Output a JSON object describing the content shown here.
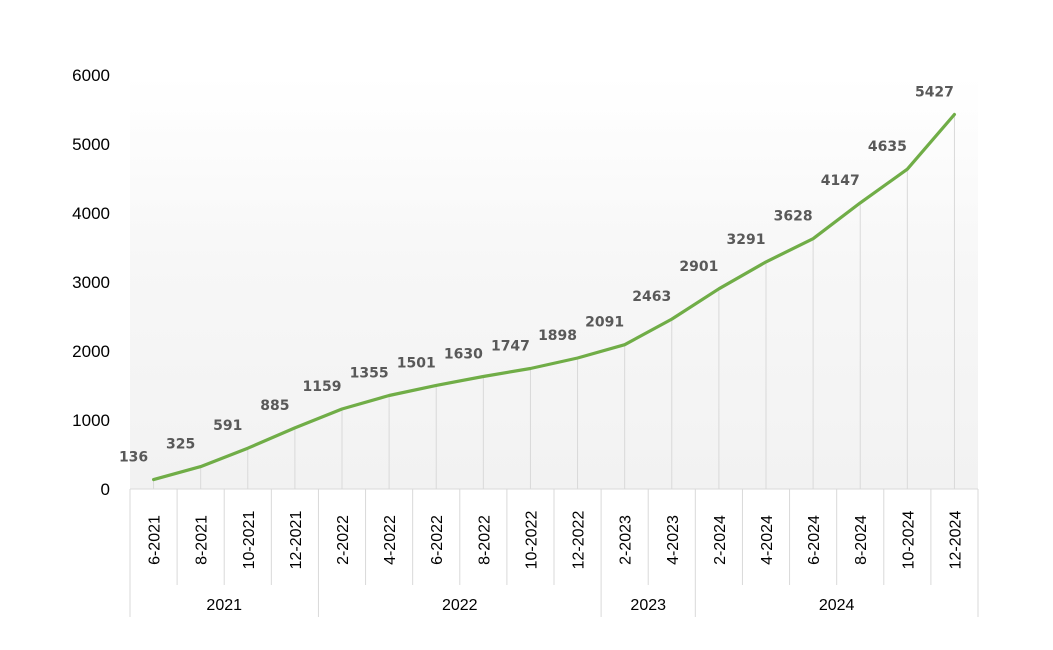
{
  "chart_data": {
    "type": "line",
    "title": "",
    "xlabel": "",
    "ylabel": "",
    "ylim": [
      0,
      6000
    ],
    "yticks": [
      0,
      1000,
      2000,
      3000,
      4000,
      5000,
      6000
    ],
    "grid": "vertical drop lines",
    "legend": "none",
    "categories": [
      "6-2021",
      "8-2021",
      "10-2021",
      "12-2021",
      "2-2022",
      "4-2022",
      "6-2022",
      "8-2022",
      "10-2022",
      "12-2022",
      "2-2023",
      "4-2023",
      "2-2024",
      "4-2024",
      "6-2024",
      "8-2024",
      "10-2024",
      "12-2024"
    ],
    "values": [
      136,
      325,
      591,
      885,
      1159,
      1355,
      1501,
      1630,
      1747,
      1898,
      2091,
      2463,
      2901,
      3291,
      3628,
      4147,
      4635,
      5427
    ],
    "year_groups": [
      {
        "label": "2021",
        "count": 4
      },
      {
        "label": "2022",
        "count": 6
      },
      {
        "label": "2023",
        "count": 2
      },
      {
        "label": "2024",
        "count": 6
      }
    ],
    "line_color": "#70AD47",
    "plot_gradient": [
      "#F2F2F2",
      "#FFFFFF"
    ]
  }
}
